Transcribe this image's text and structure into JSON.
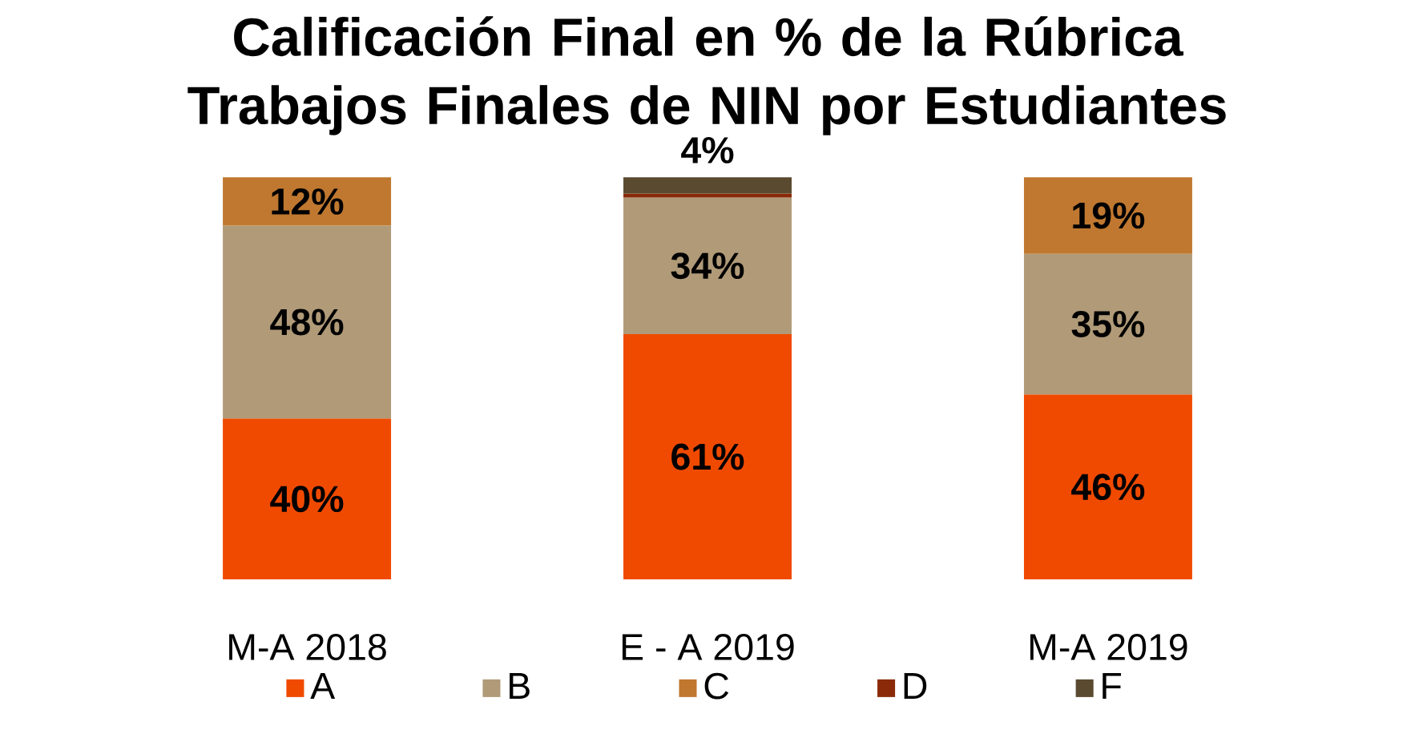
{
  "chart_data": {
    "type": "bar",
    "stacked": true,
    "title": "Calificación Final en % de la Rúbrica Trabajos Finales de NIN por Estudiantes",
    "categories": [
      "M-A 2018",
      "E - A 2019",
      "M-A 2019"
    ],
    "legend": "bottom",
    "series": [
      {
        "name": "A",
        "color": "#f04a00",
        "values": [
          40,
          61,
          46
        ],
        "value_labels": [
          "40%",
          "61%",
          "46%"
        ]
      },
      {
        "name": "B",
        "color": "#b09a78",
        "values": [
          48,
          34,
          35
        ],
        "value_labels": [
          "48%",
          "34%",
          "35%"
        ]
      },
      {
        "name": "C",
        "color": "#c07830",
        "values": [
          12,
          null,
          19
        ],
        "value_labels": [
          "12%",
          null,
          "19%"
        ]
      },
      {
        "name": "D",
        "color": "#8a2a08",
        "values": [
          null,
          1,
          null
        ],
        "value_labels": [
          null,
          null,
          null
        ]
      },
      {
        "name": "F",
        "color": "#5a4a30",
        "values": [
          null,
          4,
          null
        ],
        "value_labels": [
          null,
          "4%",
          null
        ]
      }
    ]
  }
}
